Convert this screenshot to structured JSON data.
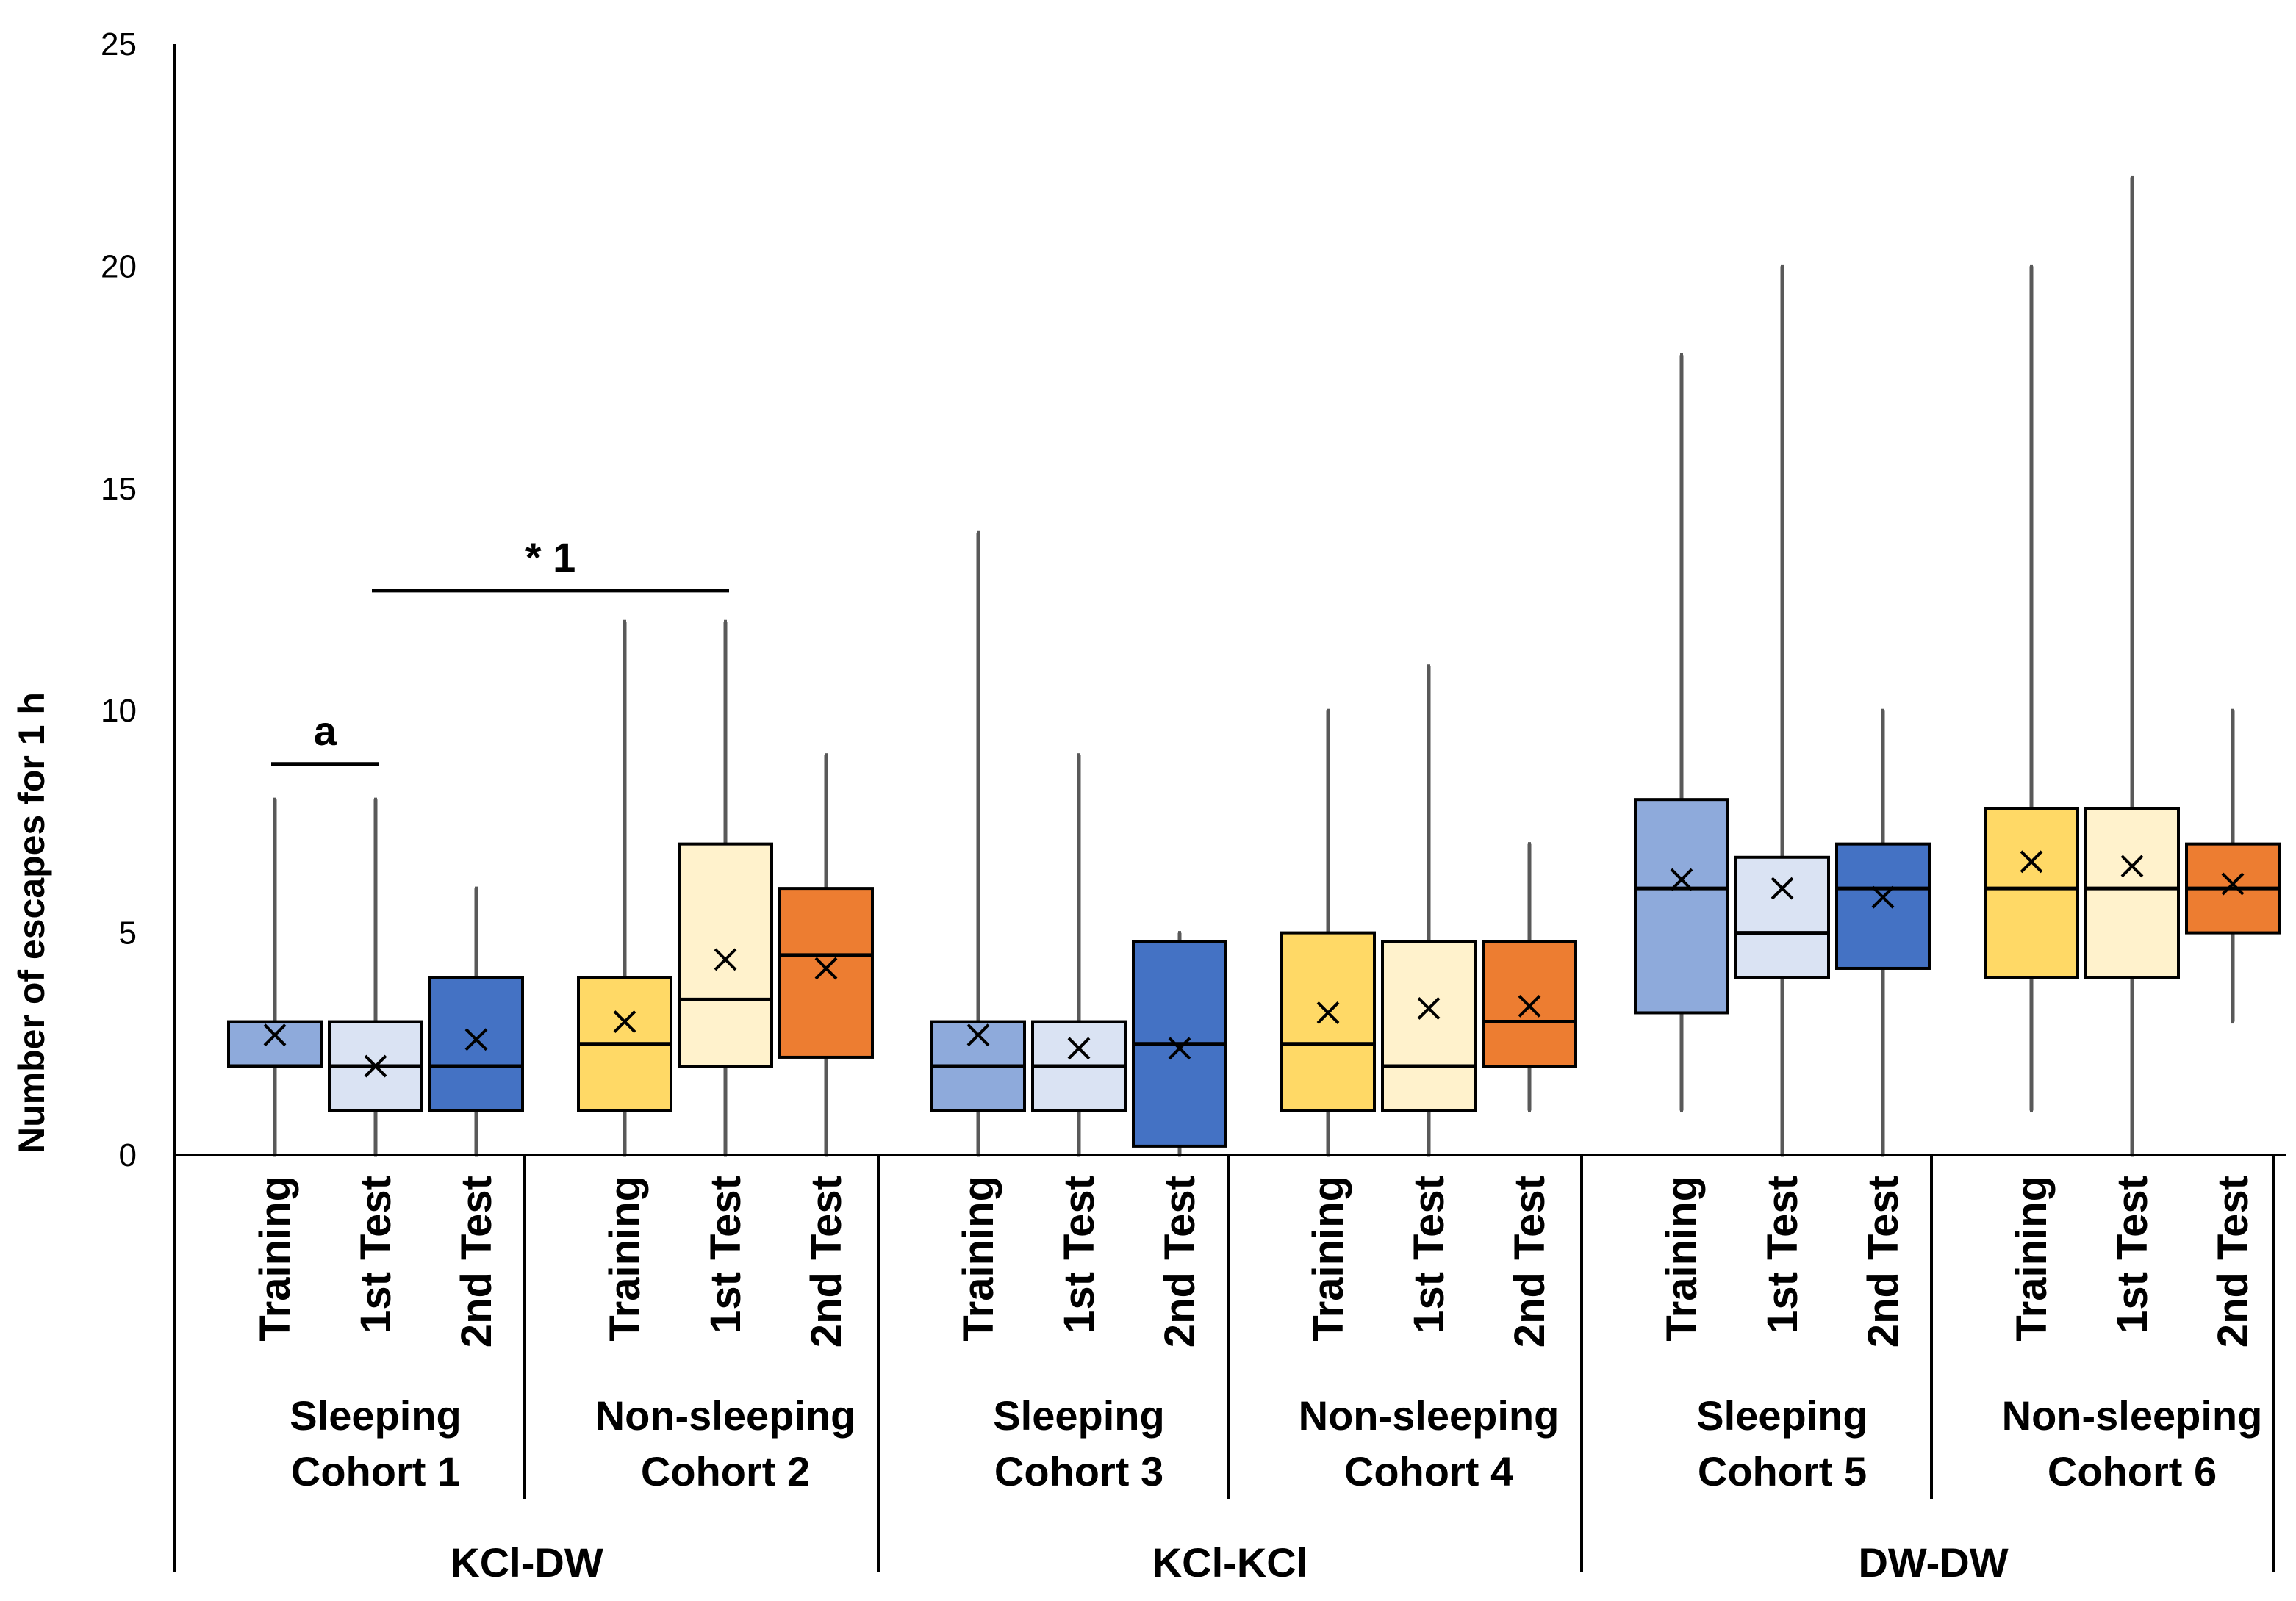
{
  "chart_data": {
    "type": "box",
    "title": "",
    "xlabel": "",
    "ylabel": "Number of escapes for 1 h",
    "ylim": [
      0,
      25
    ],
    "yticks": [
      0,
      5,
      10,
      15,
      20,
      25
    ],
    "grid": false,
    "categories": [
      "Training",
      "1st Test",
      "2nd Test"
    ],
    "conditions": [
      {
        "name": "KCl-DW",
        "groups": [
          {
            "line1": "Sleeping",
            "line2": "Cohort 1",
            "boxes": [
              {
                "phase": "Training",
                "min": 0,
                "q1": 2,
                "median": 2,
                "q3": 3,
                "max": 8,
                "mean": 2.7,
                "color": "#8eaadb"
              },
              {
                "phase": "1st Test",
                "min": 0,
                "q1": 1,
                "median": 2,
                "q3": 3,
                "max": 8,
                "mean": 2.0,
                "color": "#dae3f3"
              },
              {
                "phase": "2nd Test",
                "min": 0,
                "q1": 1,
                "median": 2,
                "q3": 4,
                "max": 6,
                "mean": 2.6,
                "color": "#4472c4"
              }
            ]
          },
          {
            "line1": "Non-sleeping",
            "line2": "Cohort 2",
            "boxes": [
              {
                "phase": "Training",
                "min": 0,
                "q1": 1,
                "median": 2.5,
                "q3": 4,
                "max": 12,
                "mean": 3.0,
                "color": "#ffd966"
              },
              {
                "phase": "1st Test",
                "min": 0,
                "q1": 2,
                "median": 3.5,
                "q3": 7,
                "max": 12,
                "mean": 4.4,
                "color": "#fff2cc"
              },
              {
                "phase": "2nd Test",
                "min": 0,
                "q1": 2.2,
                "median": 4.5,
                "q3": 6,
                "max": 9,
                "mean": 4.2,
                "color": "#ed7d31"
              }
            ]
          }
        ]
      },
      {
        "name": "KCl-KCl",
        "groups": [
          {
            "line1": "Sleeping",
            "line2": "Cohort 3",
            "boxes": [
              {
                "phase": "Training",
                "min": 0,
                "q1": 1,
                "median": 2,
                "q3": 3,
                "max": 14,
                "mean": 2.7,
                "color": "#8eaadb"
              },
              {
                "phase": "1st Test",
                "min": 0,
                "q1": 1,
                "median": 2,
                "q3": 3,
                "max": 9,
                "mean": 2.4,
                "color": "#dae3f3"
              },
              {
                "phase": "2nd Test",
                "min": 0,
                "q1": 0.2,
                "median": 2.5,
                "q3": 4.8,
                "max": 5,
                "mean": 2.4,
                "color": "#4472c4"
              }
            ]
          },
          {
            "line1": "Non-sleeping",
            "line2": "Cohort 4",
            "boxes": [
              {
                "phase": "Training",
                "min": 0,
                "q1": 1,
                "median": 2.5,
                "q3": 5,
                "max": 10,
                "mean": 3.2,
                "color": "#ffd966"
              },
              {
                "phase": "1st Test",
                "min": 0,
                "q1": 1,
                "median": 2,
                "q3": 4.8,
                "max": 11,
                "mean": 3.3,
                "color": "#fff2cc"
              },
              {
                "phase": "2nd Test",
                "min": 1,
                "q1": 2,
                "median": 3,
                "q3": 4.8,
                "max": 7,
                "mean": 3.35,
                "color": "#ed7d31"
              }
            ]
          }
        ]
      },
      {
        "name": "DW-DW",
        "groups": [
          {
            "line1": "Sleeping",
            "line2": "Cohort 5",
            "boxes": [
              {
                "phase": "Training",
                "min": 1,
                "q1": 3.2,
                "median": 6,
                "q3": 8,
                "max": 18,
                "mean": 6.2,
                "color": "#8eaadb"
              },
              {
                "phase": "1st Test",
                "min": 0,
                "q1": 4,
                "median": 5,
                "q3": 6.7,
                "max": 20,
                "mean": 6.0,
                "color": "#dae3f3"
              },
              {
                "phase": "2nd Test",
                "min": 0,
                "q1": 4.2,
                "median": 6,
                "q3": 7,
                "max": 10,
                "mean": 5.8,
                "color": "#4472c4"
              }
            ]
          },
          {
            "line1": "Non-sleeping",
            "line2": "Cohort 6",
            "boxes": [
              {
                "phase": "Training",
                "min": 1,
                "q1": 4,
                "median": 6,
                "q3": 7.8,
                "max": 20,
                "mean": 6.6,
                "color": "#ffd966"
              },
              {
                "phase": "1st Test",
                "min": 0,
                "q1": 4,
                "median": 6,
                "q3": 7.8,
                "max": 22,
                "mean": 6.5,
                "color": "#fff2cc"
              },
              {
                "phase": "2nd Test",
                "min": 3,
                "q1": 5,
                "median": 6,
                "q3": 7,
                "max": 10,
                "mean": 6.1,
                "color": "#ed7d31"
              }
            ]
          }
        ]
      }
    ],
    "annotations": [
      {
        "label": "a",
        "from_box": 0,
        "to_box": 1,
        "value": 8.8
      },
      {
        "label": "* 1",
        "from_box": 1,
        "to_box": 4,
        "value": 12.7
      }
    ]
  }
}
